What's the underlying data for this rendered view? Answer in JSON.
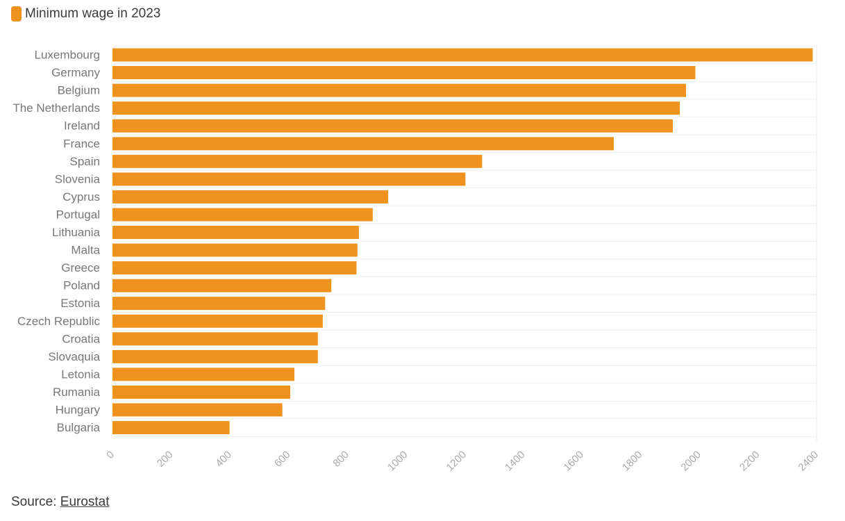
{
  "legend": {
    "label": "Minimum wage in 2023",
    "color": "#F0921E"
  },
  "source": {
    "prefix": "Source:",
    "link_text": "Eurostat"
  },
  "chart_data": {
    "type": "bar",
    "orientation": "horizontal",
    "categories": [
      "Luxembourg",
      "Germany",
      "Belgium",
      "The Netherlands",
      "Ireland",
      "France",
      "Spain",
      "Slovenia",
      "Cyprus",
      "Portugal",
      "Lithuania",
      "Malta",
      "Greece",
      "Poland",
      "Estonia",
      "Czech Republic",
      "Croatia",
      "Slovaquia",
      "Letonia",
      "Rumania",
      "Hungary",
      "Bulgaria"
    ],
    "series": [
      {
        "name": "Minimum wage in 2023",
        "color": "#F0921E",
        "values": [
          2387,
          1987,
          1955,
          1934,
          1910,
          1709,
          1260,
          1203,
          940,
          887,
          840,
          835,
          832,
          746,
          725,
          717,
          700,
          700,
          620,
          606,
          579,
          399
        ]
      }
    ],
    "x_ticks": [
      "0",
      "200",
      "400",
      "600",
      "800",
      "1000",
      "1200",
      "1400",
      "1600",
      "1800",
      "2000",
      "2200",
      "2400"
    ],
    "xlim": [
      0,
      2400
    ],
    "grid": true,
    "legend_position": "top-left"
  }
}
